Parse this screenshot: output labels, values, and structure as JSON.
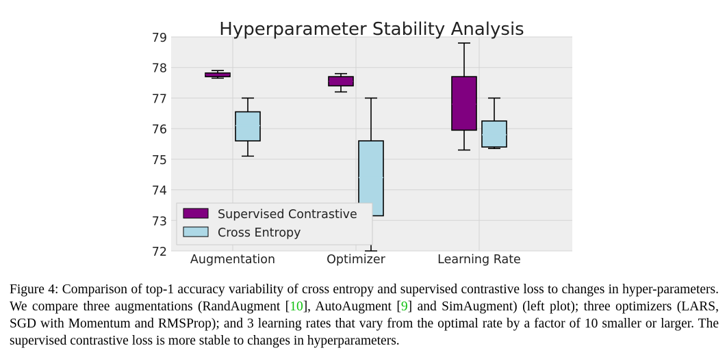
{
  "chart_data": {
    "type": "boxplot",
    "title": "Hyperparameter Stability Analysis",
    "xlabel": "",
    "ylabel": "",
    "ylim": [
      72,
      79
    ],
    "yticks": [
      72,
      73,
      74,
      75,
      76,
      77,
      78,
      79
    ],
    "grid": true,
    "legend_position": "lower-left",
    "categories": [
      "Augmentation",
      "Optimizer",
      "Learning Rate"
    ],
    "series": [
      {
        "name": "Supervised Contrastive",
        "color": "#800080",
        "boxes": [
          {
            "whisker_low": 77.65,
            "q1": 77.7,
            "median": 77.78,
            "q3": 77.82,
            "whisker_high": 77.9
          },
          {
            "whisker_low": 77.2,
            "q1": 77.4,
            "median": 77.55,
            "q3": 77.7,
            "whisker_high": 77.8
          },
          {
            "whisker_low": 75.3,
            "q1": 75.95,
            "median": 76.8,
            "q3": 77.7,
            "whisker_high": 78.8
          }
        ]
      },
      {
        "name": "Cross Entropy",
        "color": "#add8e6",
        "boxes": [
          {
            "whisker_low": 75.1,
            "q1": 75.6,
            "median": 76.1,
            "q3": 76.55,
            "whisker_high": 77.0
          },
          {
            "whisker_low": 72.0,
            "q1": 73.15,
            "median": 74.4,
            "q3": 75.6,
            "whisker_high": 77.0
          },
          {
            "whisker_low": 75.35,
            "q1": 75.4,
            "median": 75.8,
            "q3": 76.25,
            "whisker_high": 77.0
          }
        ]
      }
    ]
  },
  "caption": {
    "label": "Figure 4:",
    "seg1": " Comparison of top-1 accuracy variability of cross entropy and supervised contrastive loss to changes in hyper-parameters. We compare three augmentations (RandAugment [",
    "ref1": "10",
    "seg2": "], AutoAugment [",
    "ref2": "9",
    "seg3": "] and SimAugment) (left plot); three optimizers (LARS, SGD with Momentum and RMSProp); and 3 learning rates that vary from the optimal rate by a factor of 10 smaller or larger. The supervised contrastive loss is more stable to changes in hyperparameters."
  }
}
